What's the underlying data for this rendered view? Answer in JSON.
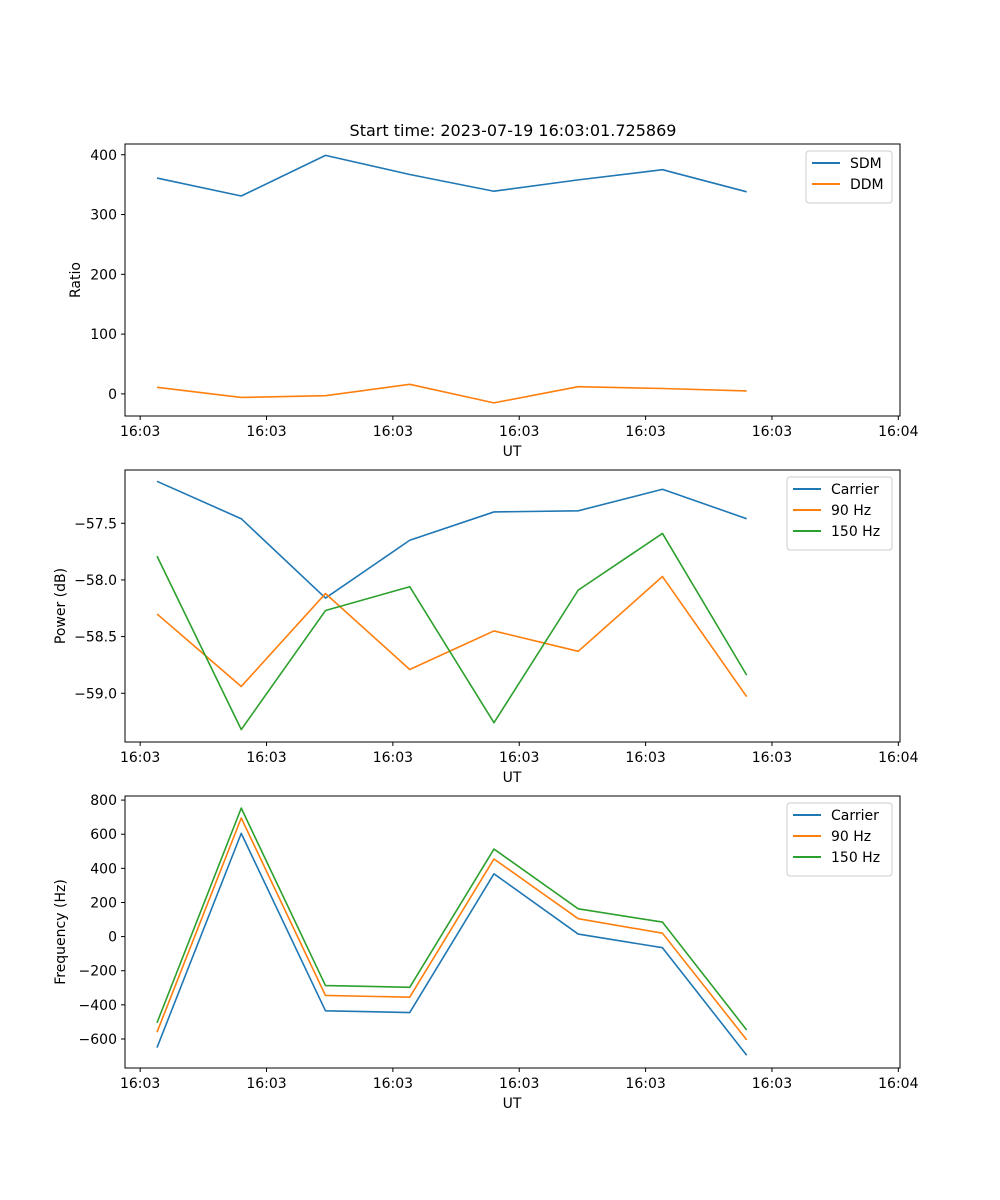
{
  "chart_data": {
    "title": "Start time: 2023-07-19 16:03:01.725869",
    "panels": [
      {
        "type": "line",
        "xlabel": "UT",
        "ylabel": "Ratio",
        "x": [
          0,
          1,
          2,
          3,
          4,
          5,
          6,
          7
        ],
        "x_ticks": [
          -0.2,
          1.3,
          2.8,
          4.3,
          5.8,
          7.3,
          8.8
        ],
        "x_tick_labels": [
          "16:03",
          "16:03",
          "16:03",
          "16:03",
          "16:03",
          "16:03",
          "16:04"
        ],
        "xlim": [
          -0.38,
          8.82
        ],
        "ylim": [
          -37,
          418
        ],
        "y_ticks": [
          0,
          100,
          200,
          300,
          400
        ],
        "y_tick_labels": [
          "0",
          "100",
          "200",
          "300",
          "400"
        ],
        "legend": "top-right",
        "series": [
          {
            "name": "SDM",
            "color": "#1f77b4",
            "values": [
              361,
              331,
              399,
              367,
              339,
              358,
              375,
              338
            ]
          },
          {
            "name": "DDM",
            "color": "#ff7f0e",
            "values": [
              11,
              -6,
              -3,
              16,
              -15,
              12,
              9,
              5
            ]
          }
        ]
      },
      {
        "type": "line",
        "xlabel": "UT",
        "ylabel": "Power (dB)",
        "x": [
          0,
          1,
          2,
          3,
          4,
          5,
          6,
          7
        ],
        "x_ticks": [
          -0.2,
          1.3,
          2.8,
          4.3,
          5.8,
          7.3,
          8.8
        ],
        "x_tick_labels": [
          "16:03",
          "16:03",
          "16:03",
          "16:03",
          "16:03",
          "16:03",
          "16:04"
        ],
        "xlim": [
          -0.38,
          8.82
        ],
        "ylim": [
          -59.43,
          -57.03
        ],
        "y_ticks": [
          -59.0,
          -58.5,
          -58.0,
          -57.5
        ],
        "y_tick_labels": [
          "−59.0",
          "−58.5",
          "−58.0",
          "−57.5"
        ],
        "legend": "top-right",
        "series": [
          {
            "name": "Carrier",
            "color": "#1f77b4",
            "values": [
              -57.13,
              -57.46,
              -58.16,
              -57.65,
              -57.4,
              -57.39,
              -57.2,
              -57.46
            ]
          },
          {
            "name": "90 Hz",
            "color": "#ff7f0e",
            "values": [
              -58.3,
              -58.94,
              -58.12,
              -58.79,
              -58.45,
              -58.63,
              -57.97,
              -59.03
            ]
          },
          {
            "name": "150 Hz",
            "color": "#2ca02c",
            "values": [
              -57.79,
              -59.32,
              -58.27,
              -58.06,
              -59.26,
              -58.09,
              -57.59,
              -58.84
            ]
          }
        ]
      },
      {
        "type": "line",
        "xlabel": "UT",
        "ylabel": "Frequency (Hz)",
        "x": [
          0,
          1,
          2,
          3,
          4,
          5,
          6,
          7
        ],
        "x_ticks": [
          -0.2,
          1.3,
          2.8,
          4.3,
          5.8,
          7.3,
          8.8
        ],
        "x_tick_labels": [
          "16:03",
          "16:03",
          "16:03",
          "16:03",
          "16:03",
          "16:03",
          "16:04"
        ],
        "xlim": [
          -0.38,
          8.82
        ],
        "ylim": [
          -770,
          824
        ],
        "y_ticks": [
          -600,
          -400,
          -200,
          0,
          200,
          400,
          600,
          800
        ],
        "y_tick_labels": [
          "−600",
          "−400",
          "−200",
          "0",
          "200",
          "400",
          "600",
          "800"
        ],
        "legend": "top-right",
        "series": [
          {
            "name": "Carrier",
            "color": "#1f77b4",
            "values": [
              -650,
              605,
              -435,
              -445,
              368,
              15,
              -65,
              -695
            ]
          },
          {
            "name": "90 Hz",
            "color": "#ff7f0e",
            "values": [
              -560,
              695,
              -345,
              -355,
              455,
              105,
              20,
              -605
            ]
          },
          {
            "name": "150 Hz",
            "color": "#2ca02c",
            "values": [
              -505,
              753,
              -287,
              -297,
              513,
              163,
              85,
              -547
            ]
          }
        ]
      }
    ]
  }
}
